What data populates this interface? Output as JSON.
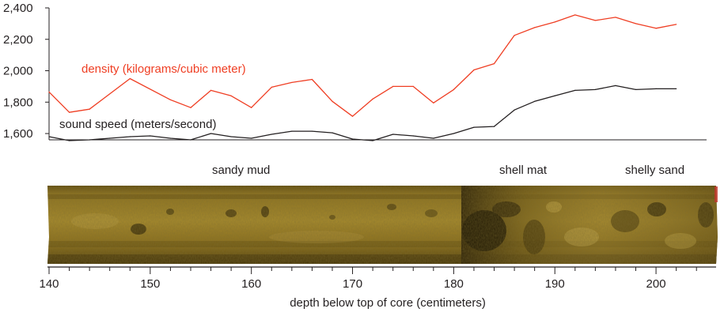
{
  "chart_data": {
    "type": "line",
    "title": "",
    "xlabel": "depth below top of core (centimeters)",
    "ylabel": "",
    "xlim": [
      140,
      205
    ],
    "ylim": [
      1560,
      2400
    ],
    "y_ticks": [
      1600,
      1800,
      2000,
      2200,
      2400
    ],
    "y_tick_labels": [
      "1,600",
      "1,800",
      "2,000",
      "2,200",
      "2,400"
    ],
    "x_ticks": [
      140,
      150,
      160,
      170,
      180,
      190,
      200
    ],
    "x_tick_labels": [
      "140",
      "150",
      "160",
      "170",
      "180",
      "190",
      "200"
    ],
    "grid": false,
    "series": [
      {
        "name": "density (kilograms/cubic meter)",
        "color": "#ef3e23",
        "x": [
          140,
          142,
          144,
          148,
          152,
          154,
          156,
          158,
          160,
          162,
          164,
          166,
          168,
          170,
          172,
          174,
          176,
          178,
          180,
          182,
          184,
          186,
          188,
          190,
          192,
          194,
          196,
          198,
          200,
          202
        ],
        "y": [
          1865,
          1735,
          1755,
          1950,
          1815,
          1765,
          1875,
          1840,
          1765,
          1895,
          1925,
          1945,
          1805,
          1710,
          1820,
          1900,
          1900,
          1795,
          1880,
          2005,
          2045,
          2225,
          2275,
          2310,
          2355,
          2320,
          2340,
          2300,
          2270,
          2295
        ]
      },
      {
        "name": "sound speed (meters/second)",
        "color": "#231f20",
        "x": [
          140,
          142,
          144,
          146,
          148,
          150,
          152,
          154,
          156,
          158,
          160,
          162,
          164,
          166,
          168,
          170,
          172,
          174,
          176,
          178,
          180,
          182,
          184,
          186,
          188,
          190,
          192,
          194,
          196,
          198,
          200,
          202
        ],
        "y": [
          1580,
          1555,
          1560,
          1570,
          1580,
          1585,
          1570,
          1560,
          1600,
          1580,
          1570,
          1595,
          1615,
          1615,
          1605,
          1565,
          1555,
          1595,
          1585,
          1570,
          1600,
          1640,
          1645,
          1750,
          1805,
          1840,
          1875,
          1880,
          1905,
          1880,
          1885,
          1885
        ]
      }
    ],
    "annotations": [
      "sandy mud",
      "shell mat",
      "shelly sand"
    ]
  },
  "core_image": {
    "colors": {
      "body": "#8a6f18",
      "light": "#b39633",
      "dark": "#4a3a0c",
      "shell": "#2c2108"
    }
  }
}
